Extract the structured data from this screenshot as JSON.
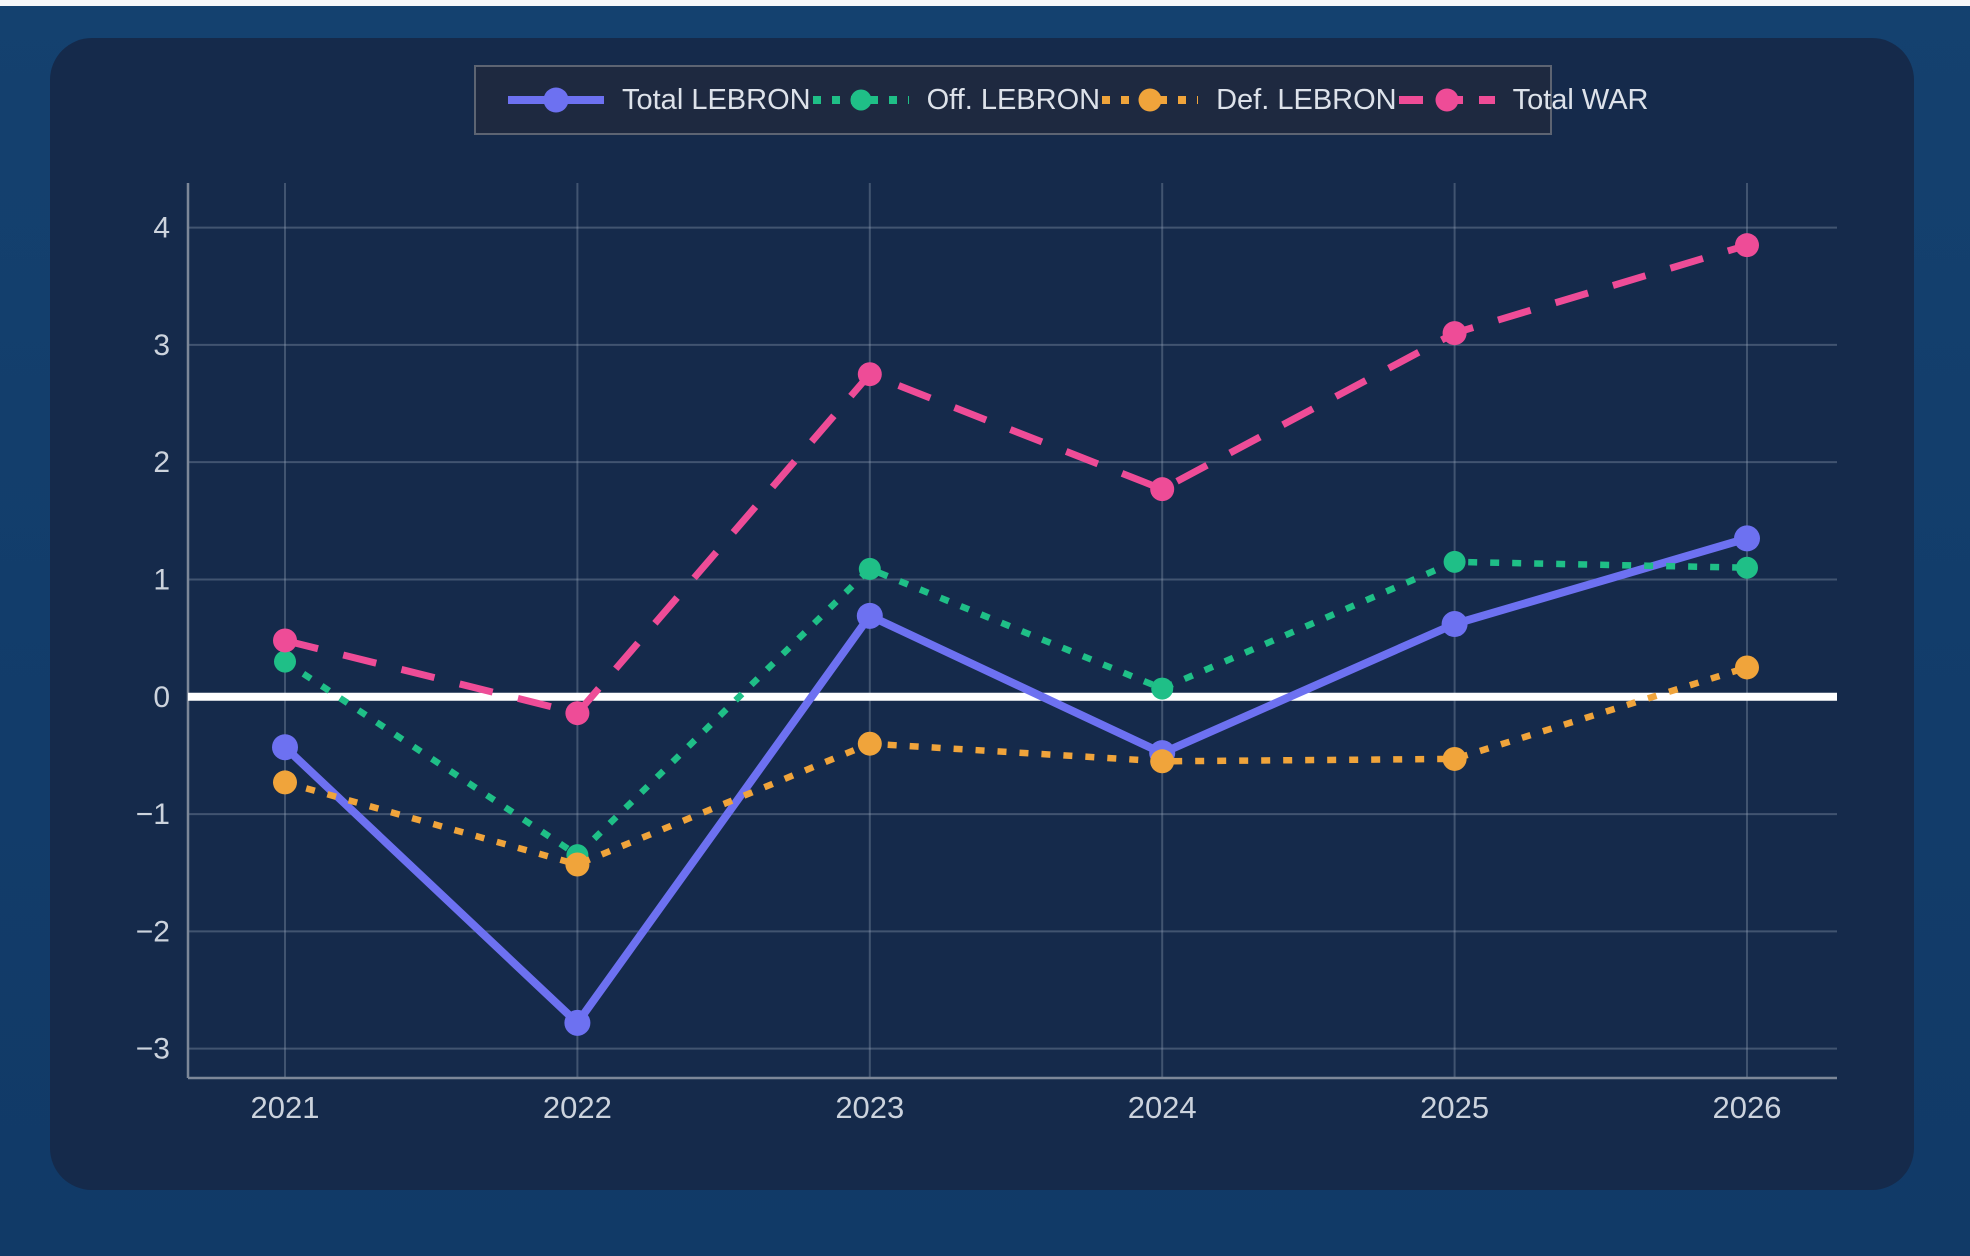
{
  "chart_data": {
    "type": "line",
    "categories": [
      "2021",
      "2022",
      "2023",
      "2024",
      "2025",
      "2026"
    ],
    "series": [
      {
        "name": "Total LEBRON",
        "color": "#6d71f1",
        "line_style": "solid",
        "values": [
          -0.43,
          -2.78,
          0.69,
          -0.48,
          0.62,
          1.35
        ]
      },
      {
        "name": "Off. LEBRON",
        "color": "#1fbf87",
        "line_style": "dot",
        "values": [
          0.3,
          -1.35,
          1.09,
          0.07,
          1.15,
          1.1
        ]
      },
      {
        "name": "Def. LEBRON",
        "color": "#f0a43b",
        "line_style": "dot",
        "values": [
          -0.73,
          -1.43,
          -0.4,
          -0.55,
          -0.53,
          0.25
        ]
      },
      {
        "name": "Total WAR",
        "color": "#ee4c97",
        "line_style": "dash",
        "values": [
          0.48,
          -0.14,
          2.75,
          1.77,
          3.1,
          3.85
        ]
      }
    ],
    "title": "",
    "xlabel": "",
    "ylabel": "",
    "ylim": [
      -3.25,
      4.38
    ],
    "yticks": [
      -3,
      -2,
      -1,
      0,
      1,
      2,
      3,
      4
    ],
    "grid": true,
    "zero_line": true,
    "legend_position": "top-center"
  },
  "colors": {
    "page_bg_top": "#14416f",
    "page_bg_bottom": "#113a67",
    "top_strip": "#f5f7fa",
    "card_bg": "#152a4b",
    "legend_bg": "#1e2940",
    "legend_border": "#5d6472",
    "grid": "#94a3b8",
    "axis": "#7d8798",
    "zero_line": "#ffffff",
    "tick_text": "#ccd3dd",
    "legend_text": "#dde2ea"
  }
}
